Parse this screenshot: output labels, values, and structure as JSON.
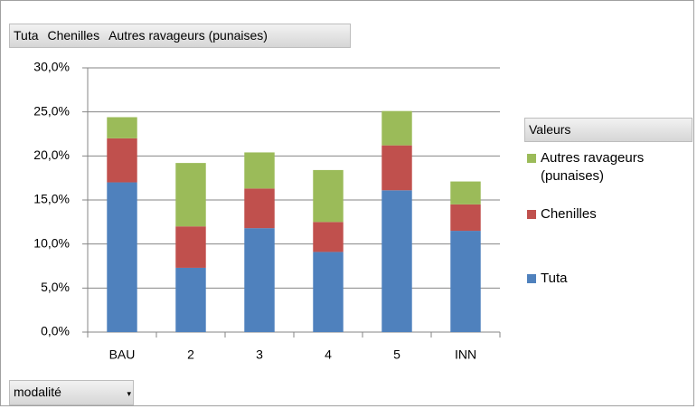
{
  "chart_data": {
    "type": "stacked_bar",
    "categories": [
      "BAU",
      "2",
      "3",
      "4",
      "5",
      "INN"
    ],
    "series": [
      {
        "name": "Tuta",
        "color": "#4f81bd",
        "values": [
          17.0,
          7.3,
          11.8,
          9.1,
          16.1,
          11.5
        ]
      },
      {
        "name": "Chenilles",
        "color": "#c0504d",
        "values": [
          5.0,
          4.7,
          4.5,
          3.4,
          5.1,
          3.0
        ]
      },
      {
        "name": "Autres ravageurs (punaises)",
        "color": "#9bbb59",
        "values": [
          2.4,
          7.2,
          4.1,
          5.9,
          3.9,
          2.6
        ]
      }
    ],
    "ylim": [
      0,
      30
    ],
    "yticks": [
      {
        "value": 0,
        "label": "0,0%"
      },
      {
        "value": 5,
        "label": "5,0%"
      },
      {
        "value": 10,
        "label": "10,0%"
      },
      {
        "value": 15,
        "label": "15,0%"
      },
      {
        "value": 20,
        "label": "20,0%"
      },
      {
        "value": 25,
        "label": "25,0%"
      },
      {
        "value": 30,
        "label": "30,0%"
      }
    ],
    "grid": true,
    "legend_title": "Valeurs",
    "filter_field": "modalité"
  }
}
